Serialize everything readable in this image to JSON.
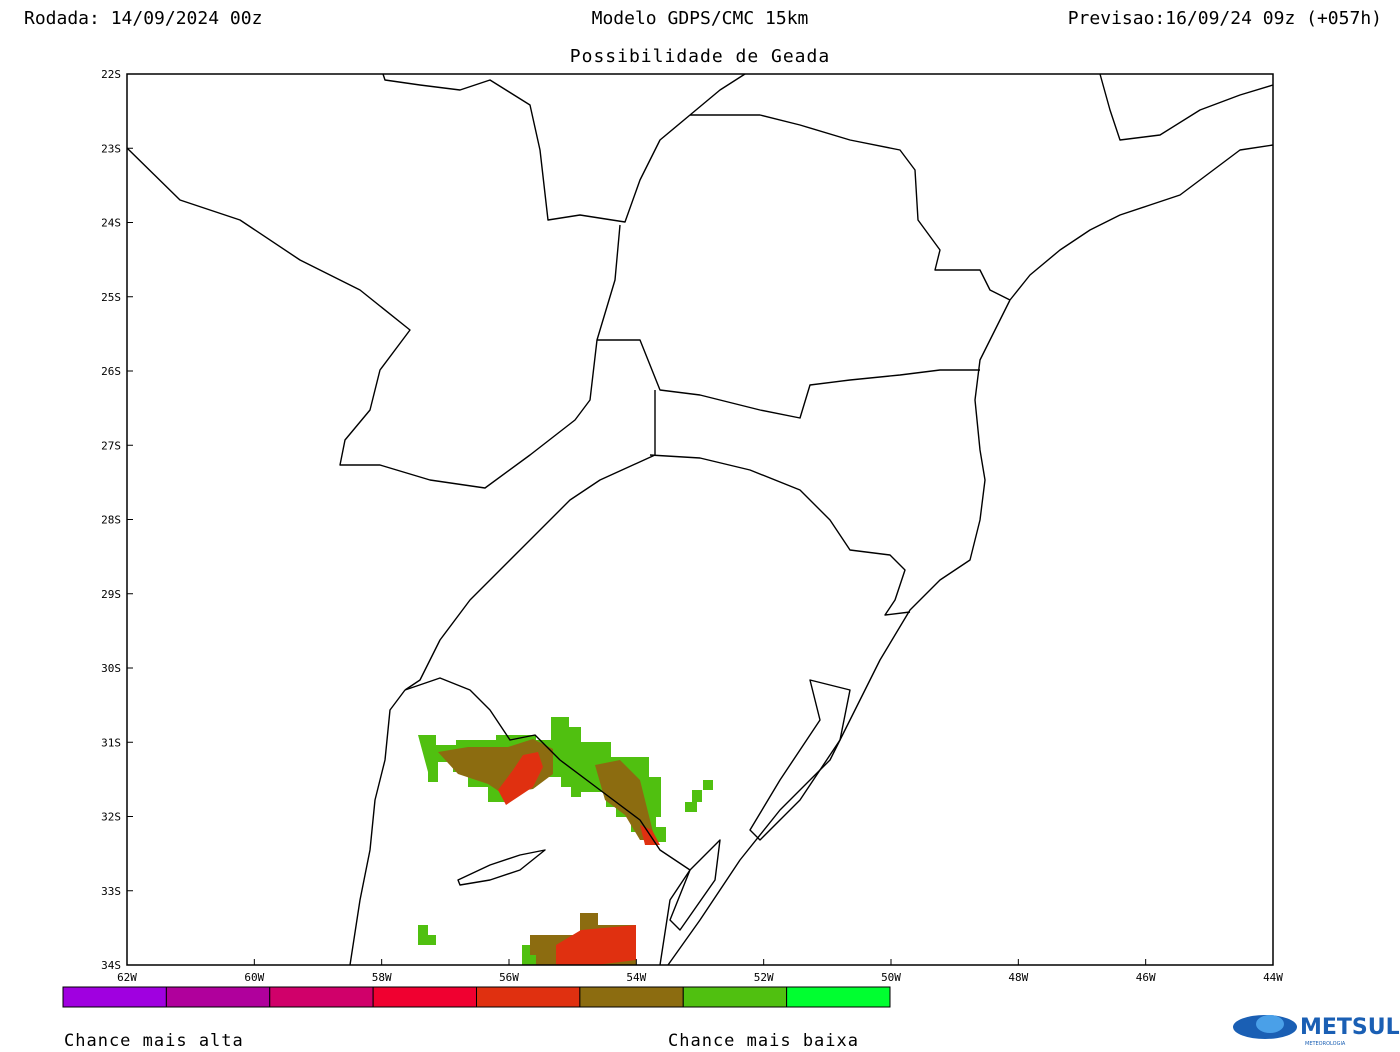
{
  "header": {
    "left": "Rodada: 14/09/2024 00z",
    "center": "Modelo GDPS/CMC 15km",
    "right": "Previsao:16/09/24 09z (+057h)",
    "subtitle": "Possibilidade de Geada"
  },
  "map": {
    "lat_labels": [
      "22S",
      "23S",
      "24S",
      "25S",
      "26S",
      "27S",
      "28S",
      "29S",
      "30S",
      "31S",
      "32S",
      "33S",
      "34S"
    ],
    "lon_labels": [
      "62W",
      "60W",
      "58W",
      "56W",
      "54W",
      "52W",
      "50W",
      "48W",
      "46W",
      "44W"
    ]
  },
  "legend": {
    "colors": [
      "#a000e0",
      "#b0009c",
      "#d0006a",
      "#f00030",
      "#e03010",
      "#8c6c10",
      "#50c010",
      "#00ff30"
    ],
    "high_label": "Chance mais alta",
    "low_label": "Chance mais baixa"
  },
  "logo": {
    "name": "METSUL",
    "tagline": "METEOROLOGIA"
  }
}
